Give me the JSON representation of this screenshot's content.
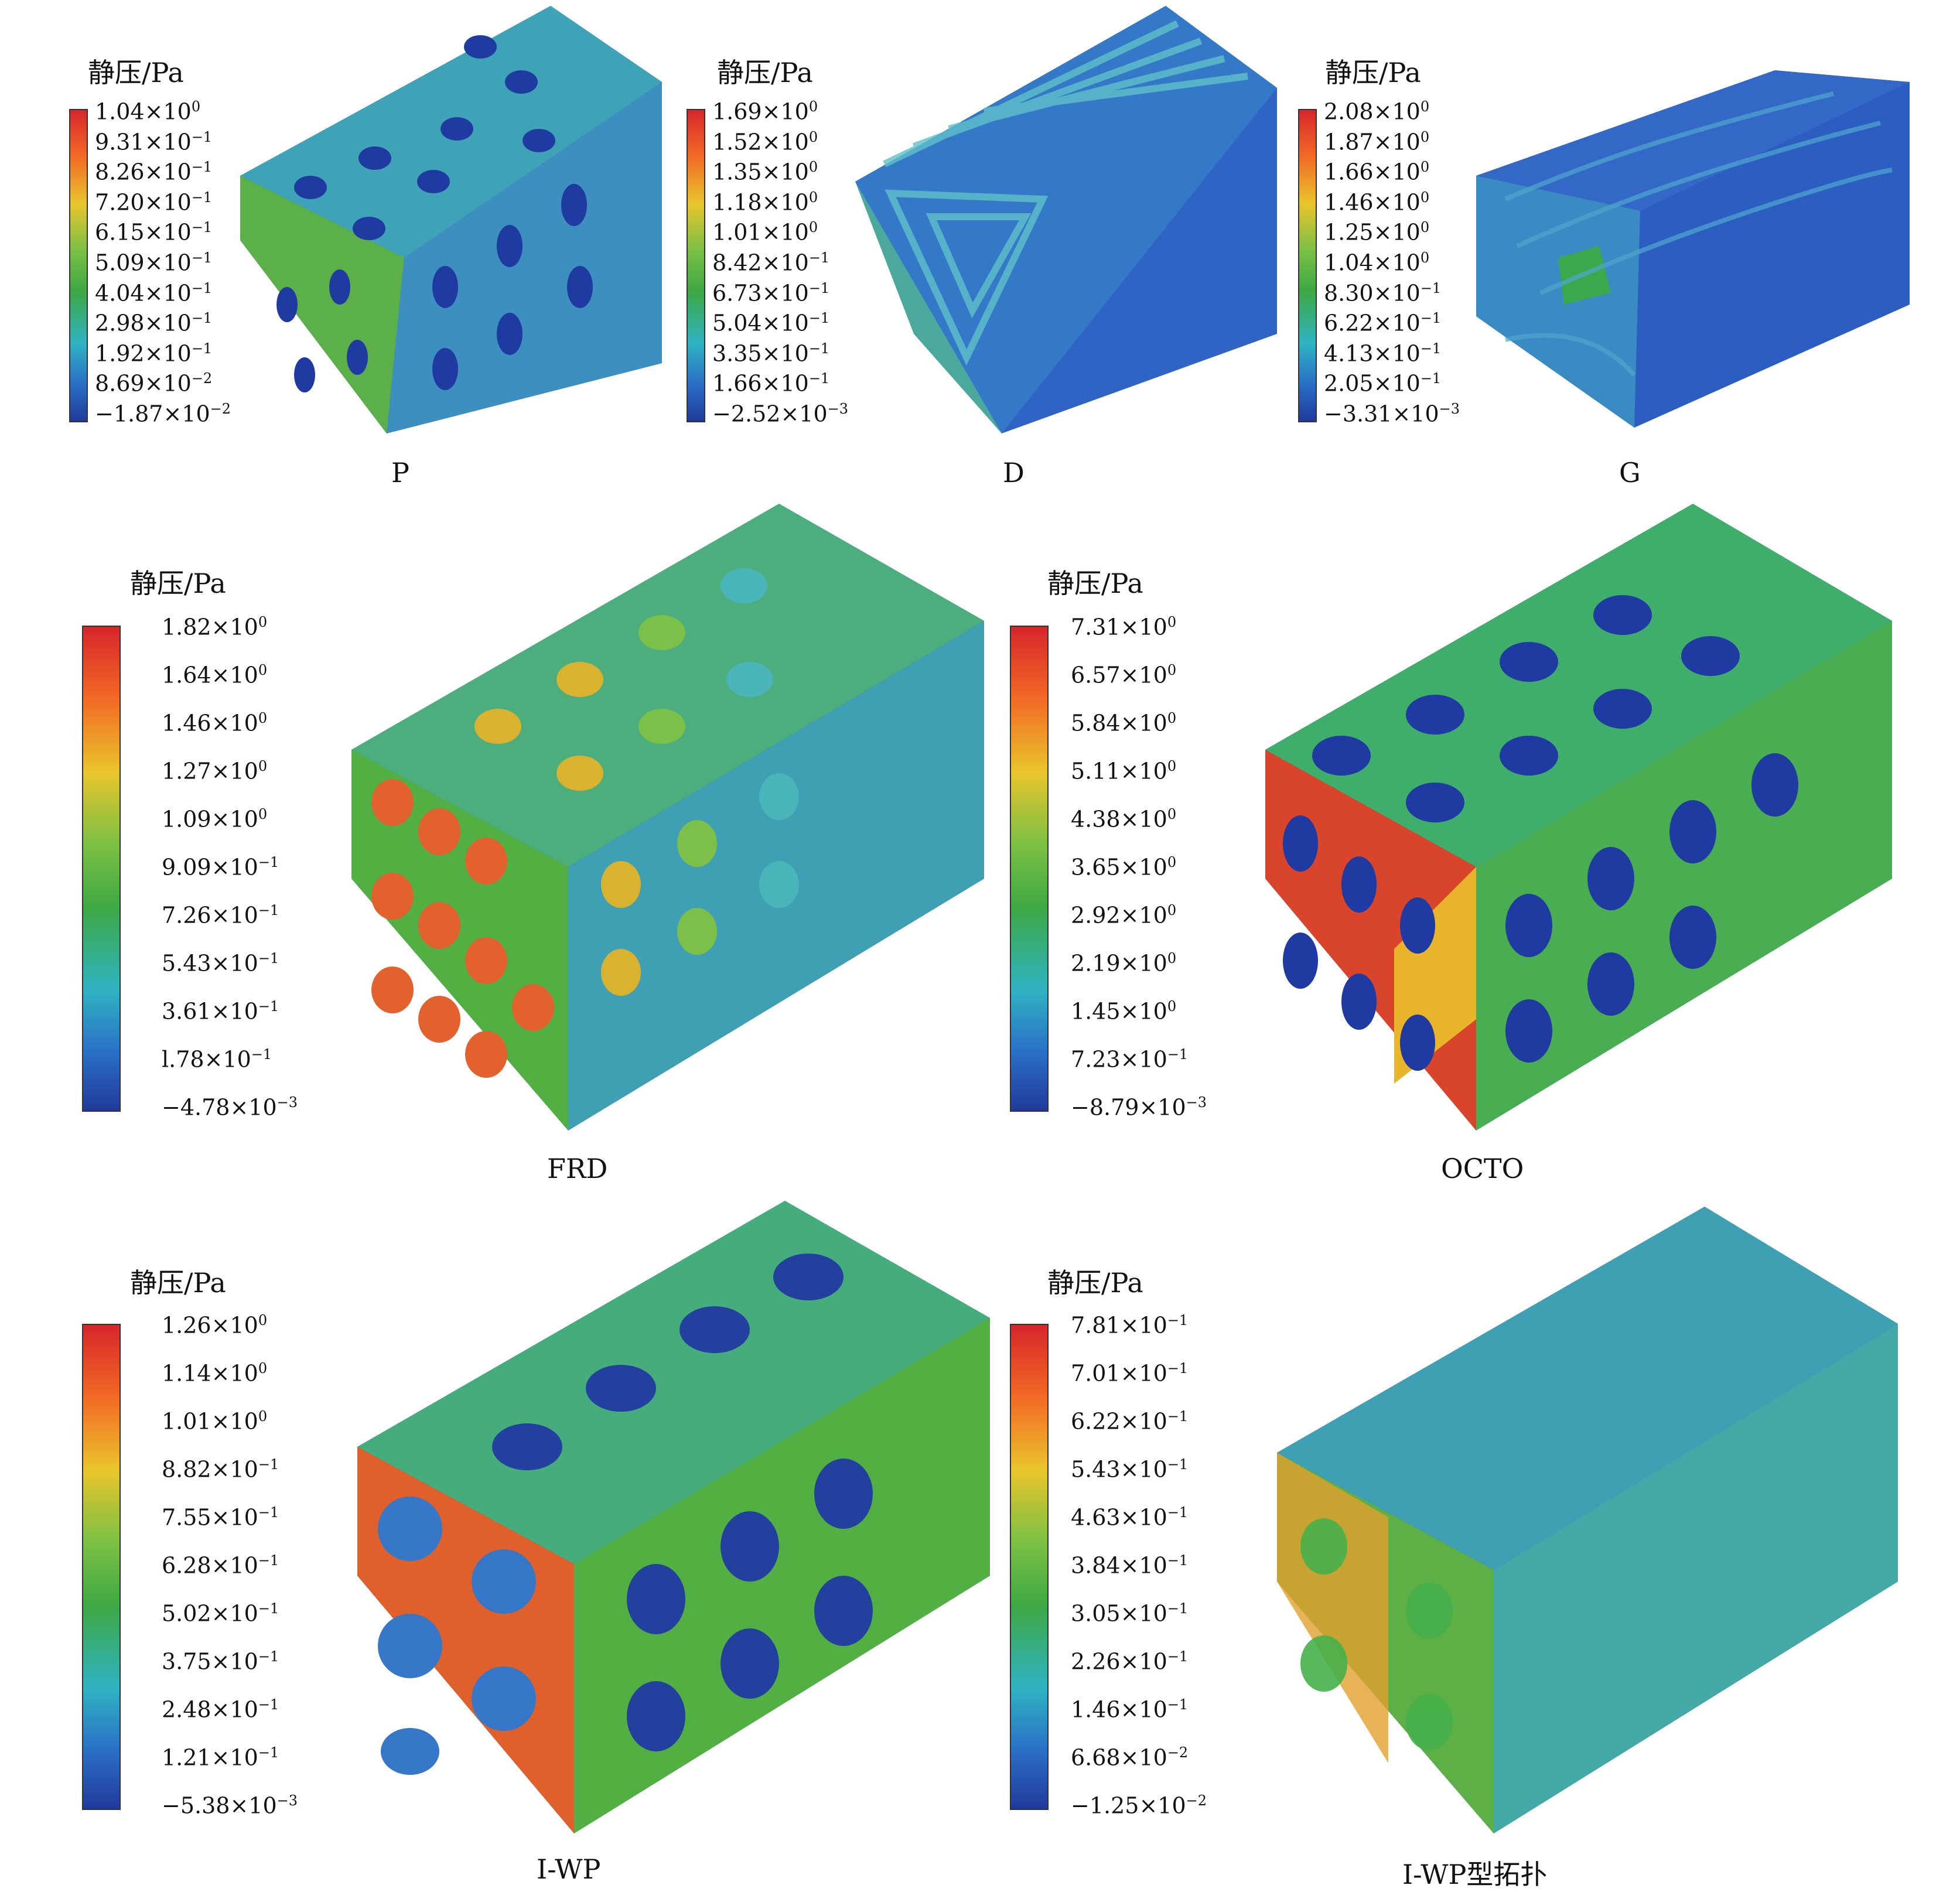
{
  "legend_title": "静压/Pa",
  "panels": [
    {
      "caption": "P",
      "ticks": [
        "1.04×10",
        "9.31×10",
        "8.26×10",
        "7.20×10",
        "6.15×10",
        "5.09×10",
        "4.04×10",
        "2.98×10",
        "1.92×10",
        "8.69×10",
        "−1.87×10"
      ],
      "exps": [
        "0",
        "−1",
        "−1",
        "−1",
        "−1",
        "−1",
        "−1",
        "−1",
        "−1",
        "−2",
        "−2"
      ]
    },
    {
      "caption": "D",
      "ticks": [
        "1.69×10",
        "1.52×10",
        "1.35×10",
        "1.18×10",
        "1.01×10",
        "8.42×10",
        "6.73×10",
        "5.04×10",
        "3.35×10",
        "1.66×10",
        "−2.52×10"
      ],
      "exps": [
        "0",
        "0",
        "0",
        "0",
        "0",
        "−1",
        "−1",
        "−1",
        "−1",
        "−1",
        "−3"
      ]
    },
    {
      "caption": "G",
      "ticks": [
        "2.08×10",
        "1.87×10",
        "1.66×10",
        "1.46×10",
        "1.25×10",
        "1.04×10",
        "8.30×10",
        "6.22×10",
        "4.13×10",
        "2.05×10",
        "−3.31×10"
      ],
      "exps": [
        "0",
        "0",
        "0",
        "0",
        "0",
        "0",
        "−1",
        "−1",
        "−1",
        "−1",
        "−3"
      ]
    },
    {
      "caption": "FRD",
      "ticks": [
        "1.82×10",
        "1.64×10",
        "1.46×10",
        "1.27×10",
        "1.09×10",
        "9.09×10",
        "7.26×10",
        "5.43×10",
        "3.61×10",
        "l.78×10",
        "−4.78×10"
      ],
      "exps": [
        "0",
        "0",
        "0",
        "0",
        "0",
        "−1",
        "−1",
        "−1",
        "−1",
        "−1",
        "−3"
      ]
    },
    {
      "caption": "OCTO",
      "ticks": [
        "7.31×10",
        "6.57×10",
        "5.84×10",
        "5.11×10",
        "4.38×10",
        "3.65×10",
        "2.92×10",
        "2.19×10",
        "1.45×10",
        "7.23×10",
        "−8.79×10"
      ],
      "exps": [
        "0",
        "0",
        "0",
        "0",
        "0",
        "0",
        "0",
        "0",
        "0",
        "−1",
        "−3"
      ]
    },
    {
      "caption": "I-WP",
      "ticks": [
        "1.26×10",
        "1.14×10",
        "1.01×10",
        "8.82×10",
        "7.55×10",
        "6.28×10",
        "5.02×10",
        "3.75×10",
        "2.48×10",
        "1.21×10",
        "−5.38×10"
      ],
      "exps": [
        "0",
        "0",
        "0",
        "−1",
        "−1",
        "−1",
        "−1",
        "−1",
        "−1",
        "−1",
        "−3"
      ]
    },
    {
      "caption": "I-WP型拓扑",
      "ticks": [
        "7.81×10",
        "7.01×10",
        "6.22×10",
        "5.43×10",
        "4.63×10",
        "3.84×10",
        "3.05×10",
        "2.26×10",
        "1.46×10",
        "6.68×10",
        "−1.25×10"
      ],
      "exps": [
        "−1",
        "−1",
        "−1",
        "−1",
        "−1",
        "−1",
        "−1",
        "−1",
        "−1",
        "−2",
        "−2"
      ]
    }
  ],
  "colors": {
    "red": "#d7262b",
    "orange": "#f26a25",
    "yellow": "#e9c52b",
    "green": "#3ea843",
    "cyan": "#2fb3c2",
    "blue": "#2a6fc6",
    "navy": "#203a9a"
  }
}
